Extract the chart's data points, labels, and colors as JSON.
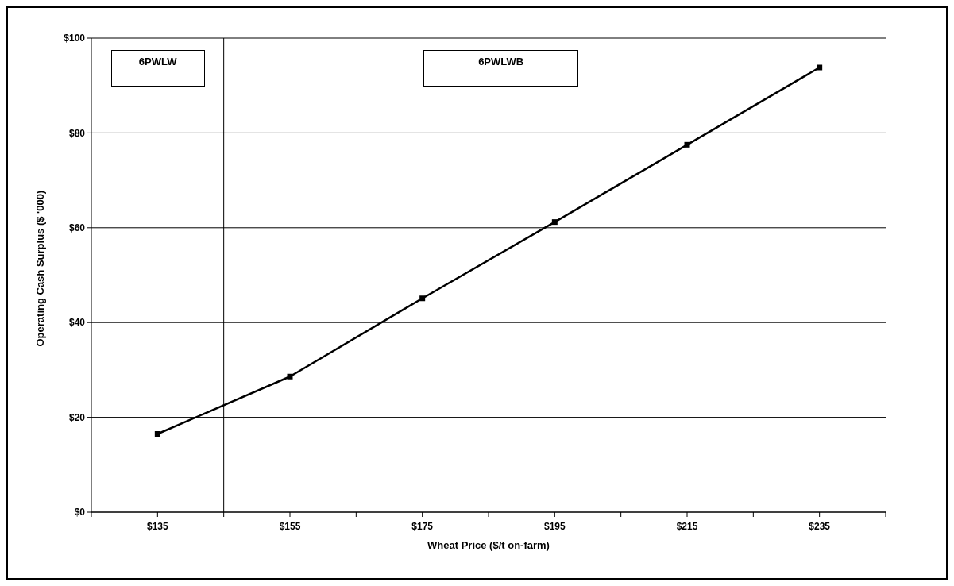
{
  "chart_data": {
    "type": "line",
    "xlabel": "Wheat Price ($/t on-farm)",
    "ylabel": "Operating Cash Surplus ($ '000)",
    "x": [
      135,
      155,
      175,
      195,
      215,
      235
    ],
    "series": [
      {
        "color": "#000000",
        "values": [
          16.5,
          28.6,
          45.1,
          61.2,
          77.5,
          93.8
        ]
      }
    ],
    "xlim": [
      125,
      245
    ],
    "xticks": [
      {
        "value": 125,
        "label": null
      },
      {
        "value": 135,
        "label": "$135"
      },
      {
        "value": 145,
        "label": null
      },
      {
        "value": 155,
        "label": "$155"
      },
      {
        "value": 165,
        "label": null
      },
      {
        "value": 175,
        "label": "$175"
      },
      {
        "value": 185,
        "label": null
      },
      {
        "value": 195,
        "label": "$195"
      },
      {
        "value": 205,
        "label": null
      },
      {
        "value": 215,
        "label": "$215"
      },
      {
        "value": 225,
        "label": null
      },
      {
        "value": 235,
        "label": "$235"
      },
      {
        "value": 245,
        "label": null
      }
    ],
    "ylim": [
      0,
      100
    ],
    "yticks": [
      {
        "value": 0,
        "label": "$0"
      },
      {
        "value": 20,
        "label": "$20"
      },
      {
        "value": 40,
        "label": "$40"
      },
      {
        "value": 60,
        "label": "$60"
      },
      {
        "value": 80,
        "label": "$80"
      },
      {
        "value": 100,
        "label": "$100"
      }
    ],
    "ref_lines": [
      {
        "axis": "x",
        "value": 145,
        "color": "#000000"
      }
    ],
    "annotations": [
      "6PWLW",
      "6PWLWB"
    ],
    "grid": "y",
    "marker": "square",
    "line_style": "solid"
  }
}
